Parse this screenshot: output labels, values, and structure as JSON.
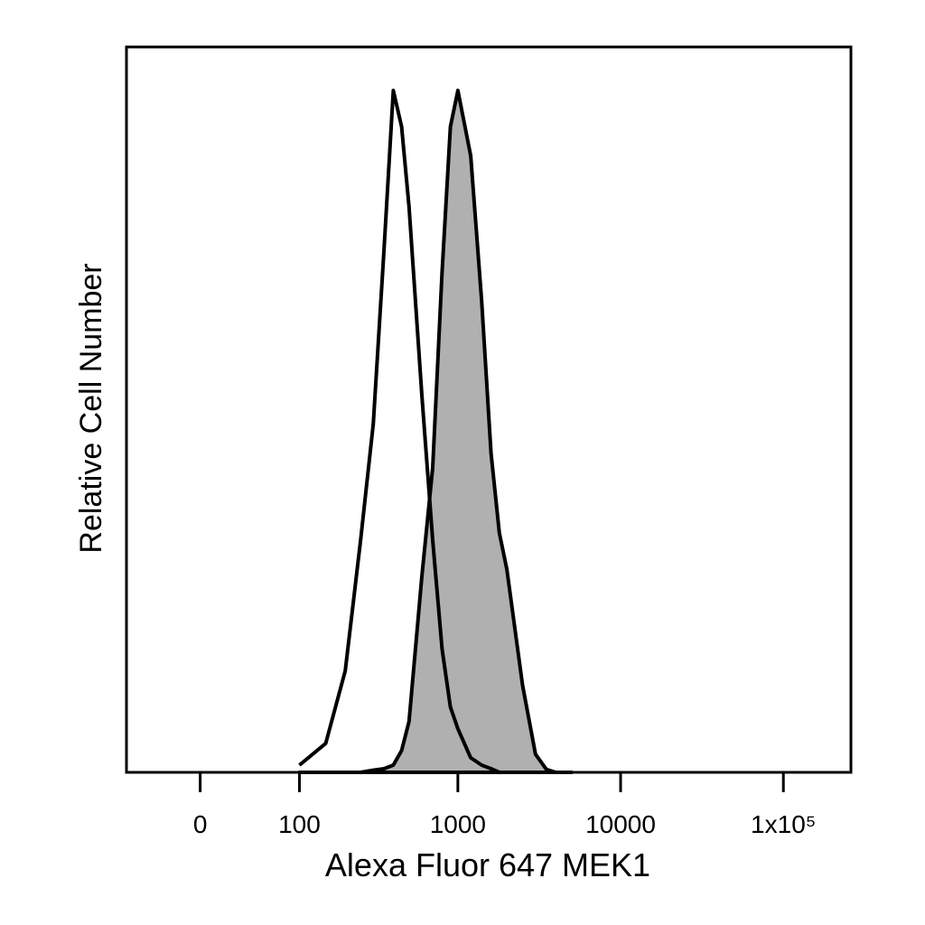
{
  "chart_data": {
    "type": "area",
    "xlabel": "Alexa Fluor 647 MEK1",
    "ylabel": "Relative Cell Number",
    "xscale": "biexponential",
    "xlim": [
      -65,
      260000
    ],
    "xticks": [
      0,
      100,
      1000,
      10000,
      {
        "value": 100000,
        "label": "1x10⁵"
      }
    ],
    "ylim": [
      0,
      100
    ],
    "x": [
      100,
      150,
      200,
      250,
      300,
      350,
      400,
      450,
      500,
      600,
      700,
      800,
      900,
      1000,
      1200,
      1400,
      1600,
      1800,
      2000,
      2500,
      3000,
      3500,
      4000,
      5000
    ],
    "series": [
      {
        "color": "#000000",
        "fill": "#b0b0b0",
        "values": [
          0,
          0,
          0,
          0,
          0.3,
          0.5,
          1,
          3,
          7,
          27,
          42,
          69,
          89,
          94,
          85,
          65,
          44,
          33,
          28,
          12,
          2.5,
          0.4,
          0,
          0
        ]
      },
      {
        "color": "#000000",
        "values": [
          1,
          4,
          14,
          32,
          48,
          72,
          94,
          89,
          78,
          52,
          32,
          17,
          9,
          6,
          2,
          1,
          0.5,
          0,
          0,
          0,
          0,
          0,
          0,
          0
        ]
      }
    ]
  }
}
